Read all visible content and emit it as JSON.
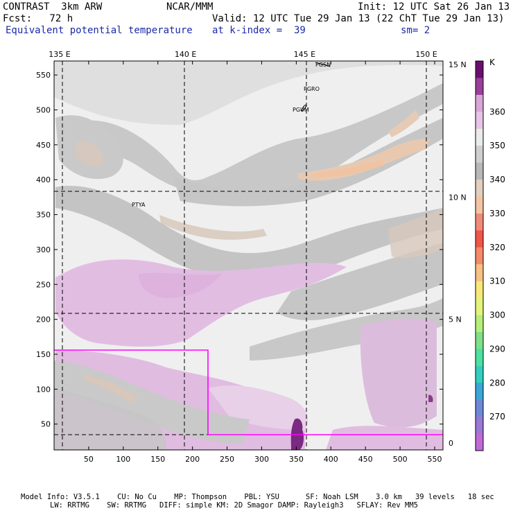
{
  "header": {
    "model": "CONTRAST  3km ARW",
    "center": "NCAR/MMM",
    "init": "Init: 12 UTC Sat 26 Jan 13",
    "fcst": "Fcst:   72 h",
    "valid": "Valid: 12 UTC Tue 29 Jan 13 (22 ChT Tue 29 Jan 13)",
    "field": "Equivalent potential temperature",
    "level": "at k-index =  39",
    "smooth": "sm= 2"
  },
  "footer": {
    "line1": "Model Info: V3.5.1    CU: No Cu    MP: Thompson    PBL: YSU      SF: Noah LSM    3.0 km   39 levels   18 sec",
    "line2": "LW: RRTMG    SW: RRTMG   DIFF: simple KM: 2D Smagor DAMP: Rayleigh3   SFLAY: Rev MM5"
  },
  "chart_data": {
    "type": "heatmap",
    "title": "Equivalent potential temperature",
    "x_grid_ticks": [
      50,
      100,
      150,
      200,
      250,
      300,
      350,
      400,
      450,
      500,
      550
    ],
    "y_grid_ticks": [
      50,
      100,
      150,
      200,
      250,
      300,
      350,
      400,
      450,
      500,
      550
    ],
    "xlim": [
      0,
      562
    ],
    "ylim": [
      13,
      570
    ],
    "lon_labels": [
      {
        "label": "135 E",
        "x": 8
      },
      {
        "label": "140 E",
        "x": 190
      },
      {
        "label": "145 E",
        "x": 362
      },
      {
        "label": "150 E",
        "x": 538
      }
    ],
    "lat_labels": [
      {
        "label": "15 N",
        "y": 565
      },
      {
        "label": "10 N",
        "y": 375
      },
      {
        "label": "5 N",
        "y": 200
      },
      {
        "label": "0",
        "y": 23
      }
    ],
    "stations": [
      "PGSN",
      "PGRO",
      "PGUM",
      "PTYA"
    ],
    "colorbar": {
      "unit": "K",
      "labels": [
        "360",
        "350",
        "340",
        "330",
        "320",
        "310",
        "300",
        "290",
        "280",
        "270"
      ],
      "colors": [
        "#6a0f6f",
        "#9a3f9a",
        "#d9a6d9",
        "#e6c5e6",
        "#ebebeb",
        "#cfcfcf",
        "#b8b8b8",
        "#e2cfc0",
        "#f3c4a4",
        "#f28a78",
        "#f2564a",
        "#f58a68",
        "#f7c084",
        "#f7e87a",
        "#e6f37a",
        "#b6ee7a",
        "#7fe08a",
        "#4de0a0",
        "#32cfc0",
        "#3aa6d8",
        "#6e88d8",
        "#9a78d6",
        "#c06ad6"
      ],
      "range": [
        265,
        370
      ]
    }
  }
}
